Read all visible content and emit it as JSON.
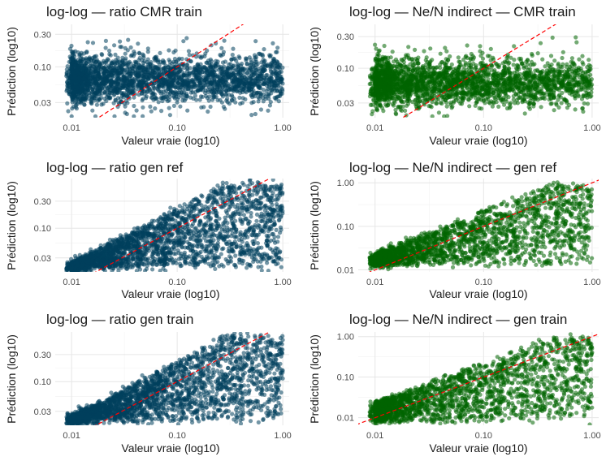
{
  "figure": {
    "background": "#ffffff",
    "ref_line_color": "#ff0000"
  },
  "chart_data": [
    {
      "id": "p1",
      "type": "scatter",
      "title": "log-log — ratio CMR train",
      "xlabel": "Valeur vraie (log10)",
      "ylabel": "Prédiction (log10)",
      "x_scale": "log10",
      "y_scale": "log10",
      "xlim": [
        0.007,
        1.15
      ],
      "ylim": [
        0.018,
        0.42
      ],
      "x_ticks": [
        0.01,
        0.1,
        1.0
      ],
      "x_tick_labels": [
        "0.01",
        "0.10",
        "1.00"
      ],
      "y_ticks": [
        0.03,
        0.1,
        0.3
      ],
      "y_tick_labels": [
        "0.03",
        "0.10",
        "0.30"
      ],
      "color": "#003f5c",
      "grid": true,
      "reference_line": "y = x (dashed red)",
      "cloud": {
        "n": 2600,
        "pred_low": 0.02,
        "pred_high": 0.3,
        "pred_center": 0.065,
        "pattern": "flat band"
      }
    },
    {
      "id": "p2",
      "type": "scatter",
      "title": "log-log — Ne/N indirect — CMR train",
      "xlabel": "Valeur vraie (log10)",
      "ylabel": "Prédiction (log10)",
      "x_scale": "log10",
      "y_scale": "log10",
      "xlim": [
        0.007,
        1.15
      ],
      "ylim": [
        0.018,
        0.46
      ],
      "x_ticks": [
        0.01,
        0.1,
        1.0
      ],
      "x_tick_labels": [
        "0.01",
        "0.10",
        "1.00"
      ],
      "y_ticks": [
        0.03,
        0.1,
        0.3
      ],
      "y_tick_labels": [
        "0.03",
        "0.10",
        "0.30"
      ],
      "color": "#006400",
      "grid": true,
      "reference_line": "y = x (dashed red)",
      "cloud": {
        "n": 2600,
        "pred_low": 0.02,
        "pred_high": 0.3,
        "pred_center": 0.06,
        "pattern": "flat band"
      }
    },
    {
      "id": "p3",
      "type": "scatter",
      "title": "log-log — ratio gen ref",
      "xlabel": "Valeur vraie (log10)",
      "ylabel": "Prédiction (log10)",
      "x_scale": "log10",
      "y_scale": "log10",
      "xlim": [
        0.007,
        1.15
      ],
      "ylim": [
        0.017,
        0.75
      ],
      "x_ticks": [
        0.01,
        0.1,
        1.0
      ],
      "x_tick_labels": [
        "0.01",
        "0.10",
        "1.00"
      ],
      "y_ticks": [
        0.03,
        0.1,
        0.3
      ],
      "y_tick_labels": [
        "0.03",
        "0.10",
        "0.30"
      ],
      "color": "#003f5c",
      "grid": true,
      "reference_line": "y = x (dashed red)",
      "cloud": {
        "n": 2600,
        "pred_low": 0.02,
        "pred_high": 0.62,
        "pattern": "widening fan upward"
      }
    },
    {
      "id": "p4",
      "type": "scatter",
      "title": "log-log — Ne/N indirect — gen ref",
      "xlabel": "Valeur vraie (log10)",
      "ylabel": "Prédiction (log10)",
      "x_scale": "log10",
      "y_scale": "log10",
      "xlim": [
        0.007,
        1.15
      ],
      "ylim": [
        0.009,
        1.25
      ],
      "x_ticks": [
        0.01,
        0.1,
        1.0
      ],
      "x_tick_labels": [
        "0.01",
        "0.10",
        "1.00"
      ],
      "y_ticks": [
        0.01,
        0.1,
        1.0
      ],
      "y_tick_labels": [
        "0.01",
        "0.10",
        "1.00"
      ],
      "color": "#006400",
      "grid": true,
      "reference_line": "y = x (dashed red)",
      "cloud": {
        "n": 2200,
        "pred_low": 0.013,
        "pred_high": 1.0,
        "pattern": "widening fan upward"
      }
    },
    {
      "id": "p5",
      "type": "scatter",
      "title": "log-log — ratio gen train",
      "xlabel": "Valeur vraie (log10)",
      "ylabel": "Prédiction (log10)",
      "x_scale": "log10",
      "y_scale": "log10",
      "xlim": [
        0.007,
        1.15
      ],
      "ylim": [
        0.017,
        0.75
      ],
      "x_ticks": [
        0.01,
        0.1,
        1.0
      ],
      "x_tick_labels": [
        "0.01",
        "0.10",
        "1.00"
      ],
      "y_ticks": [
        0.03,
        0.1,
        0.3
      ],
      "y_tick_labels": [
        "0.03",
        "0.10",
        "0.30"
      ],
      "color": "#003f5c",
      "grid": true,
      "reference_line": "y = x (dashed red)",
      "cloud": {
        "n": 2600,
        "pred_low": 0.02,
        "pred_high": 0.62,
        "pattern": "widening fan upward"
      }
    },
    {
      "id": "p6",
      "type": "scatter",
      "title": "log-log — Ne/N indirect — gen train",
      "xlabel": "Valeur vraie (log10)",
      "ylabel": "Prédiction (log10)",
      "x_scale": "log10",
      "y_scale": "log10",
      "xlim": [
        0.007,
        1.15
      ],
      "ylim": [
        0.0065,
        1.3
      ],
      "x_ticks": [
        0.01,
        0.1,
        1.0
      ],
      "x_tick_labels": [
        "0.01",
        "0.10",
        "1.00"
      ],
      "y_ticks": [
        0.01,
        0.1,
        1.0
      ],
      "y_tick_labels": [
        "0.01",
        "0.10",
        "1.00"
      ],
      "color": "#006400",
      "grid": true,
      "reference_line": "y = x (dashed red)",
      "cloud": {
        "n": 2200,
        "pred_low": 0.008,
        "pred_high": 1.0,
        "pattern": "widening fan upward"
      }
    }
  ]
}
